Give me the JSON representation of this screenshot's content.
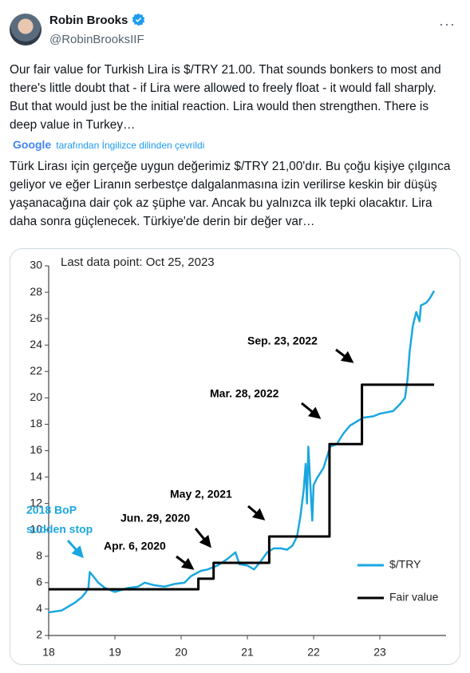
{
  "header": {
    "name": "Robin Brooks",
    "handle": "@RobinBrooksIIF"
  },
  "tweet": {
    "text": "Our fair value for Turkish Lira is $/TRY 21.00. That sounds bonkers to most and there's little doubt that - if Lira were allowed to freely float - it would fall sharply. But that would just be the initial reaction. Lira would then strengthen. There is deep value in Turkey…",
    "translation_source": "Google",
    "translation_note": "tarafından İngilizce dilinden çevrildi",
    "translation": "Türk Lirası için gerçeğe uygun değerimiz $/TRY 21,00'dır. Bu çoğu kişiye çılgınca geliyor ve eğer Liranın serbestçe dalgalanmasına izin verilirse keskin bir düşüş yaşanacağına dair çok az şüphe var. Ancak bu yalnızca ilk tepki olacaktır. Lira daha sonra güçlenecek. Türkiye'de derin bir değer var…"
  },
  "chart_data": {
    "type": "line",
    "annotations": [
      "Last data point: Oct 25, 2023",
      "Sep. 23, 2022",
      "Mar. 28, 2022",
      "May 2, 2021",
      "Jun. 29, 2020",
      "Apr. 6, 2020",
      "2018 BoP",
      "sudden stop"
    ],
    "xlim": [
      18,
      24
    ],
    "xticks": [
      18,
      19,
      20,
      21,
      22,
      23
    ],
    "ylim": [
      2,
      30
    ],
    "yticks": [
      2,
      4,
      6,
      8,
      10,
      12,
      14,
      16,
      18,
      20,
      22,
      24,
      26,
      28,
      30
    ],
    "legend": "lower right",
    "series": [
      {
        "name": "$/TRY",
        "color": "#1aa7e0",
        "x": [
          18.0,
          18.2,
          18.3,
          18.4,
          18.5,
          18.55,
          18.6,
          18.62,
          18.67,
          18.75,
          18.85,
          19.0,
          19.2,
          19.35,
          19.45,
          19.6,
          19.75,
          19.9,
          20.05,
          20.15,
          20.3,
          20.4,
          20.55,
          20.7,
          20.82,
          20.88,
          21.0,
          21.1,
          21.2,
          21.3,
          21.4,
          21.5,
          21.6,
          21.68,
          21.75,
          21.8,
          21.85,
          21.88,
          21.9,
          21.92,
          21.95,
          21.98,
          22.0,
          22.05,
          22.15,
          22.25,
          22.35,
          22.45,
          22.55,
          22.65,
          22.75,
          22.9,
          23.0,
          23.1,
          23.2,
          23.3,
          23.38,
          23.42,
          23.45,
          23.5,
          23.55,
          23.6,
          23.62,
          23.7,
          23.75,
          23.82
        ],
        "values": [
          3.75,
          3.9,
          4.2,
          4.5,
          4.9,
          5.2,
          5.6,
          6.8,
          6.5,
          6.0,
          5.6,
          5.3,
          5.6,
          5.7,
          6.0,
          5.8,
          5.7,
          5.9,
          6.0,
          6.5,
          6.9,
          7.0,
          7.3,
          7.8,
          8.3,
          7.4,
          7.3,
          7.0,
          7.6,
          8.3,
          8.6,
          8.6,
          8.5,
          8.8,
          9.5,
          11.0,
          13.0,
          15.0,
          12.0,
          16.3,
          13.5,
          10.7,
          13.4,
          13.9,
          14.7,
          16.3,
          16.5,
          17.3,
          17.9,
          18.2,
          18.5,
          18.6,
          18.8,
          18.9,
          19.0,
          19.5,
          20.0,
          21.5,
          23.5,
          25.5,
          26.5,
          25.8,
          27.0,
          27.2,
          27.5,
          28.1
        ]
      },
      {
        "name": "Fair value",
        "color": "#000000",
        "x": [
          18,
          20.26,
          20.26,
          20.49,
          20.49,
          21.33,
          21.33,
          22.24,
          22.24,
          22.73,
          22.73,
          23.82
        ],
        "values": [
          5.5,
          5.5,
          6.3,
          6.3,
          7.5,
          7.5,
          9.5,
          9.5,
          16.5,
          16.5,
          21,
          21
        ]
      }
    ]
  }
}
